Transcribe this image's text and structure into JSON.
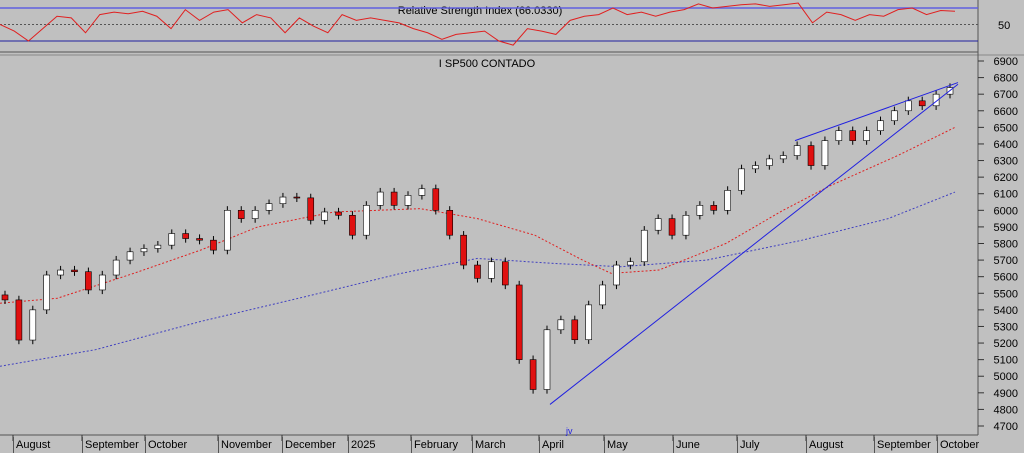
{
  "chart_data": [
    {
      "type": "line",
      "title": "Relative Strength Index (66.0330)",
      "ylabel_ticks": [
        "50"
      ],
      "levels": {
        "upper": 70,
        "middle": 50,
        "lower": 30
      },
      "ylim": [
        20,
        80
      ],
      "values": [
        50,
        42,
        30,
        45,
        60,
        58,
        40,
        62,
        65,
        63,
        66,
        60,
        45,
        68,
        55,
        65,
        68,
        52,
        62,
        58,
        40,
        58,
        48,
        40,
        62,
        55,
        58,
        55,
        52,
        45,
        40,
        32,
        38,
        40,
        42,
        30,
        25,
        45,
        42,
        38,
        55,
        60,
        62,
        70,
        62,
        65,
        60,
        65,
        68,
        75,
        70,
        72,
        74,
        75,
        72,
        74,
        76,
        52,
        65,
        62,
        55,
        62,
        60,
        68,
        70,
        62,
        67,
        66
      ],
      "color": "#e02020"
    },
    {
      "type": "candlestick",
      "title": "I SP500 CONTADO",
      "ylim": [
        4700,
        6900
      ],
      "yticks": [
        4700,
        4800,
        4900,
        5000,
        5100,
        5200,
        5300,
        5400,
        5500,
        5600,
        5700,
        5800,
        5900,
        6000,
        6100,
        6200,
        6300,
        6400,
        6500,
        6600,
        6700,
        6800,
        6900
      ],
      "xlabels": [
        "August",
        "September",
        "October",
        "November",
        "December",
        "2025",
        "February",
        "March",
        "April",
        "May",
        "June",
        "July",
        "August",
        "September",
        "October"
      ],
      "marker": "jv",
      "closes": [
        5460,
        5218,
        5400,
        5610,
        5640,
        5630,
        5520,
        5610,
        5700,
        5750,
        5770,
        5790,
        5860,
        5830,
        5820,
        5760,
        6000,
        5950,
        6000,
        6040,
        6080,
        6075,
        5940,
        5990,
        5970,
        5850,
        6030,
        6110,
        6030,
        6090,
        6130,
        6000,
        5850,
        5670,
        5590,
        5690,
        5550,
        5100,
        4920,
        5280,
        5340,
        5220,
        5430,
        5550,
        5670,
        5690,
        5880,
        5950,
        5850,
        5970,
        6030,
        6000,
        6120,
        6250,
        6270,
        6310,
        6330,
        6390,
        6270,
        6420,
        6480,
        6420,
        6480,
        6540,
        6600,
        6660,
        6630,
        6700,
        6740
      ],
      "ma_short": {
        "color": "#e02020",
        "points": [
          [
            0,
            5440
          ],
          [
            0.06,
            5470
          ],
          [
            0.14,
            5620
          ],
          [
            0.21,
            5760
          ],
          [
            0.27,
            5900
          ],
          [
            0.35,
            5990
          ],
          [
            0.44,
            6010
          ],
          [
            0.5,
            5950
          ],
          [
            0.56,
            5850
          ],
          [
            0.61,
            5700
          ],
          [
            0.64,
            5620
          ],
          [
            0.69,
            5640
          ],
          [
            0.76,
            5800
          ],
          [
            0.82,
            6000
          ],
          [
            0.87,
            6150
          ],
          [
            0.94,
            6330
          ],
          [
            1,
            6500
          ]
        ]
      },
      "ma_long": {
        "color": "#4040c0",
        "points": [
          [
            0,
            5060
          ],
          [
            0.1,
            5160
          ],
          [
            0.21,
            5330
          ],
          [
            0.32,
            5480
          ],
          [
            0.42,
            5620
          ],
          [
            0.5,
            5710
          ],
          [
            0.58,
            5680
          ],
          [
            0.65,
            5660
          ],
          [
            0.74,
            5700
          ],
          [
            0.84,
            5820
          ],
          [
            0.93,
            5950
          ],
          [
            1,
            6110
          ]
        ]
      },
      "trendlines": [
        {
          "from": [
            "April",
            4830
          ],
          "to": [
            "October",
            6760
          ],
          "color": "#2020e0"
        },
        {
          "from": [
            "July",
            6420
          ],
          "to": [
            "October",
            6770
          ],
          "color": "#2020e0"
        }
      ]
    }
  ]
}
